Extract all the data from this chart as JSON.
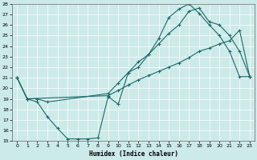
{
  "xlabel": "Humidex (Indice chaleur)",
  "background_color": "#cceae8",
  "plot_bg_color": "#cceae8",
  "line_color": "#1a6b6b",
  "xlim": [
    -0.5,
    23.5
  ],
  "ylim": [
    15,
    28
  ],
  "yticks": [
    15,
    16,
    17,
    18,
    19,
    20,
    21,
    22,
    23,
    24,
    25,
    26,
    27,
    28
  ],
  "xticks": [
    0,
    1,
    2,
    3,
    4,
    5,
    6,
    7,
    8,
    9,
    10,
    11,
    12,
    13,
    14,
    15,
    16,
    17,
    18,
    19,
    20,
    21,
    22,
    23
  ],
  "line1_x": [
    0,
    1,
    2,
    3,
    4,
    5,
    6,
    7,
    8,
    9,
    10,
    11,
    12,
    13,
    14,
    15,
    16,
    17,
    18,
    19,
    20,
    21,
    22,
    23
  ],
  "line1_y": [
    21,
    19,
    18.7,
    17.3,
    16.2,
    15.2,
    15.2,
    15.2,
    15.3,
    19.2,
    18.5,
    21.5,
    22.0,
    23.2,
    24.7,
    26.7,
    27.5,
    28.0,
    27.1,
    26.0,
    25.0,
    23.5,
    21.1,
    21.1
  ],
  "line2_x": [
    0,
    1,
    9,
    10,
    11,
    12,
    13,
    14,
    15,
    16,
    17,
    18,
    19,
    20,
    21,
    22,
    23
  ],
  "line2_y": [
    21,
    19,
    19.3,
    19.8,
    20.3,
    20.8,
    21.2,
    21.6,
    22.0,
    22.4,
    22.9,
    23.5,
    23.8,
    24.2,
    24.5,
    25.5,
    21.1
  ],
  "line3_x": [
    0,
    1,
    2,
    3,
    9,
    10,
    11,
    12,
    13,
    14,
    15,
    16,
    17,
    18,
    19,
    20,
    21,
    22,
    23
  ],
  "line3_y": [
    21,
    19,
    19,
    18.7,
    19.5,
    20.5,
    21.5,
    22.5,
    23.2,
    24.2,
    25.2,
    26.0,
    27.3,
    27.6,
    26.3,
    26.0,
    25.0,
    23.5,
    21.1
  ]
}
